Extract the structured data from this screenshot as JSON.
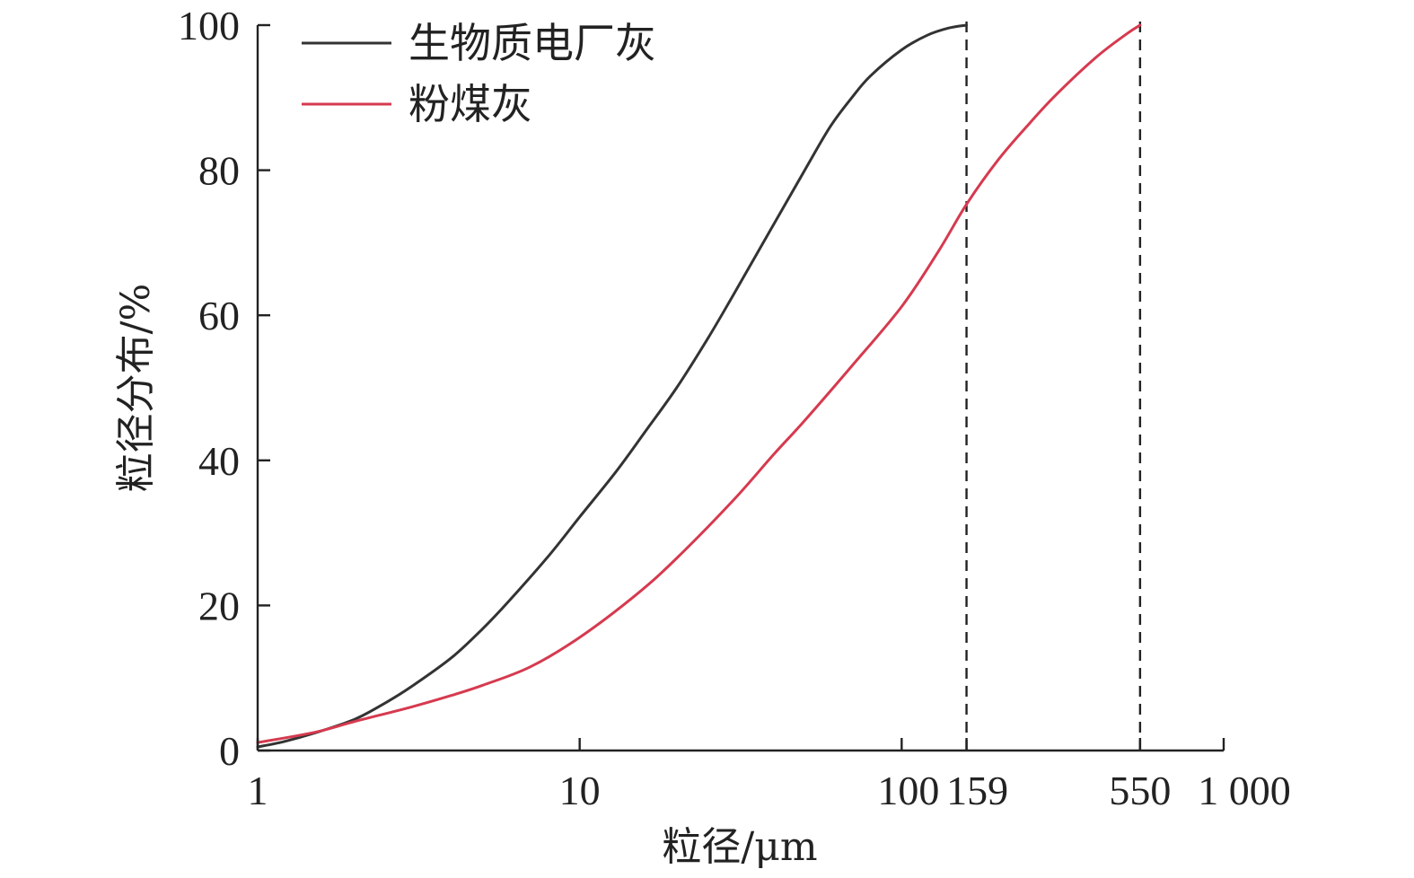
{
  "chart_data": {
    "type": "line",
    "x_scale": "log",
    "xlim": [
      1,
      1000
    ],
    "ylim": [
      0,
      100
    ],
    "xlabel": "粒径/μm",
    "ylabel": "粒径分布/%",
    "x_ticks": [
      {
        "value": 1,
        "label": "1"
      },
      {
        "value": 10,
        "label": "10"
      },
      {
        "value": 100,
        "label": "100"
      },
      {
        "value": 159,
        "label": "159"
      },
      {
        "value": 550,
        "label": "550"
      },
      {
        "value": 1000,
        "label": "1 000"
      }
    ],
    "y_ticks": [
      {
        "value": 0,
        "label": "0"
      },
      {
        "value": 20,
        "label": "20"
      },
      {
        "value": 40,
        "label": "40"
      },
      {
        "value": 60,
        "label": "60"
      },
      {
        "value": 80,
        "label": "80"
      },
      {
        "value": 100,
        "label": "100"
      }
    ],
    "reference_lines_x": [
      159,
      550
    ],
    "legend_position": "top-left",
    "grid": false,
    "series": [
      {
        "name": "生物质电厂灰",
        "color": "#333333",
        "points": [
          [
            1,
            0.5
          ],
          [
            1.2,
            1.2
          ],
          [
            1.5,
            2.4
          ],
          [
            2,
            4.3
          ],
          [
            2.5,
            6.6
          ],
          [
            3,
            8.8
          ],
          [
            4,
            12.8
          ],
          [
            5,
            16.8
          ],
          [
            6,
            20.5
          ],
          [
            8,
            26.8
          ],
          [
            10,
            32.2
          ],
          [
            13,
            38.5
          ],
          [
            16,
            44.0
          ],
          [
            20,
            50.0
          ],
          [
            25,
            56.8
          ],
          [
            30,
            62.8
          ],
          [
            40,
            72.5
          ],
          [
            50,
            80.0
          ],
          [
            60,
            86.0
          ],
          [
            70,
            90.0
          ],
          [
            80,
            93.0
          ],
          [
            100,
            96.6
          ],
          [
            120,
            98.6
          ],
          [
            140,
            99.6
          ],
          [
            159,
            100
          ]
        ]
      },
      {
        "name": "粉煤灰",
        "color": "#d63a4f",
        "points": [
          [
            1,
            1.1
          ],
          [
            1.5,
            2.5
          ],
          [
            2,
            4.0
          ],
          [
            3,
            6.0
          ],
          [
            4,
            7.6
          ],
          [
            5,
            9.0
          ],
          [
            7,
            11.5
          ],
          [
            10,
            15.6
          ],
          [
            15,
            21.5
          ],
          [
            20,
            26.5
          ],
          [
            30,
            34.5
          ],
          [
            40,
            40.8
          ],
          [
            50,
            45.5
          ],
          [
            70,
            53.0
          ],
          [
            100,
            61.2
          ],
          [
            130,
            68.8
          ],
          [
            159,
            75.3
          ],
          [
            200,
            81.5
          ],
          [
            250,
            86.5
          ],
          [
            300,
            90.3
          ],
          [
            400,
            95.5
          ],
          [
            500,
            98.8
          ],
          [
            550,
            100
          ]
        ]
      }
    ]
  }
}
